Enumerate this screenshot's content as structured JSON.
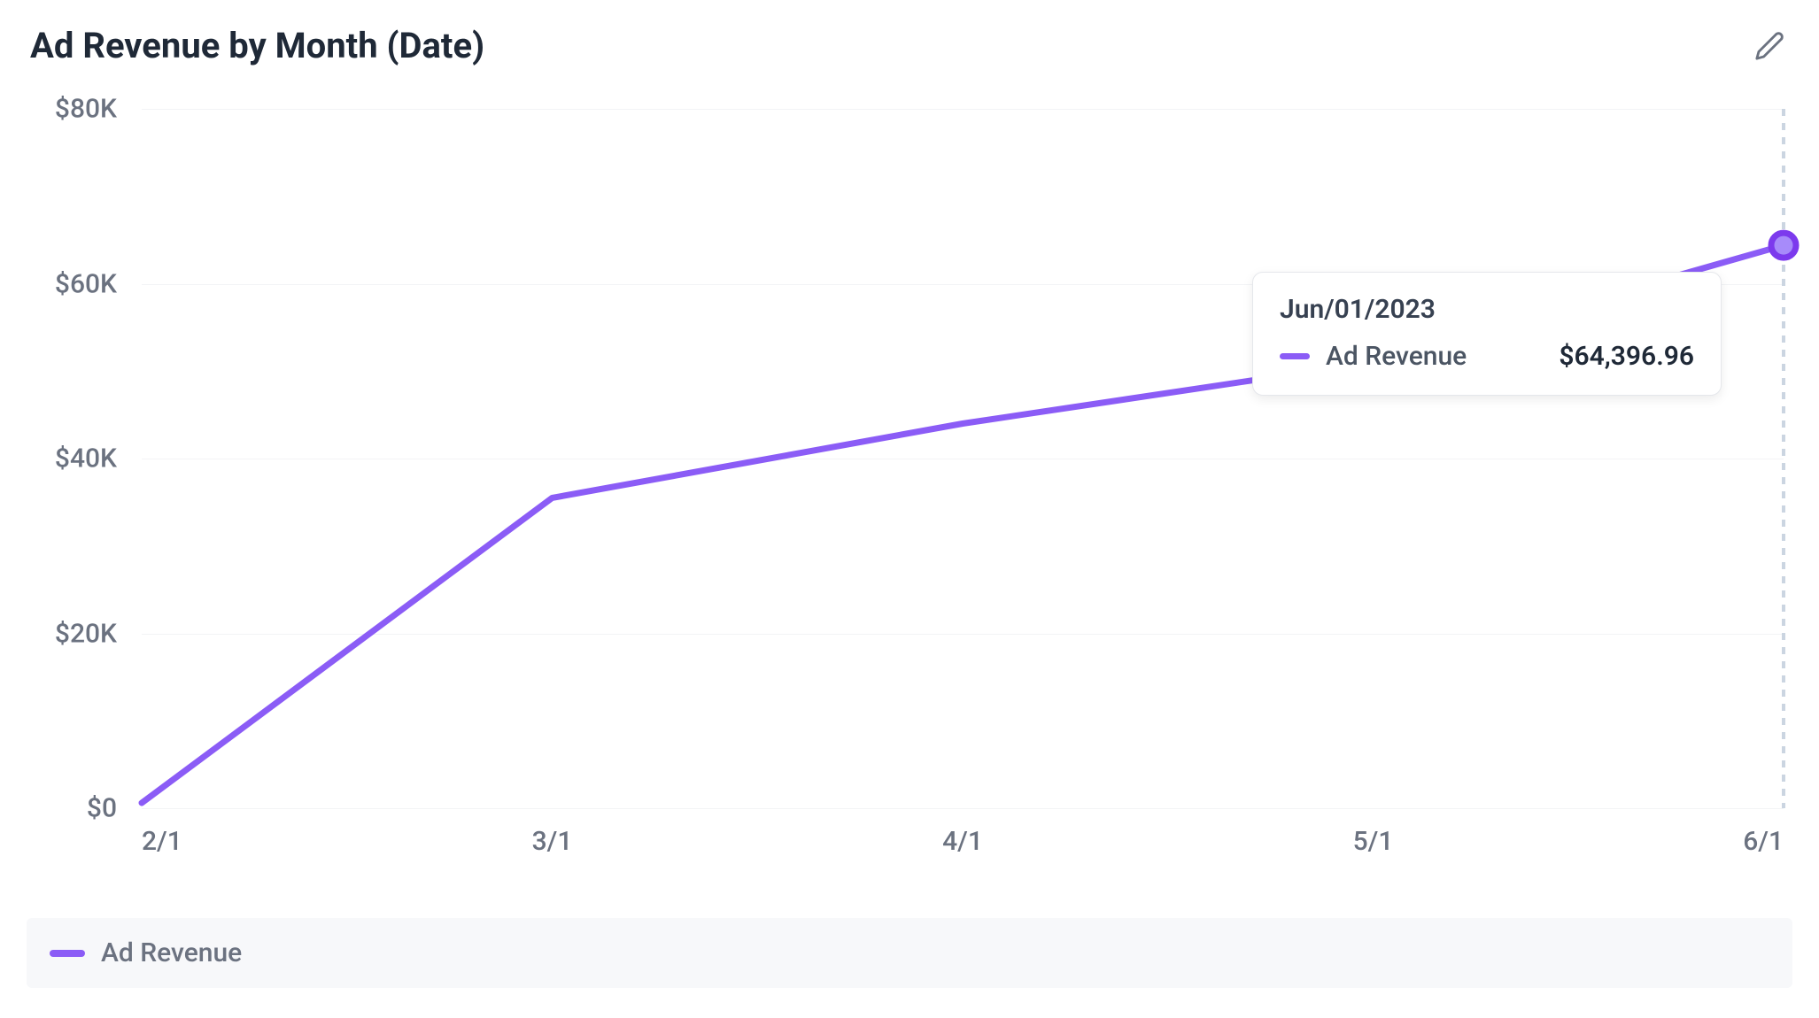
{
  "header": {
    "title": "Ad Revenue by Month (Date)"
  },
  "chart": {
    "type": "line",
    "series_name": "Ad Revenue",
    "line_color": "#8b5cf6",
    "line_width": 7,
    "marker_stroke": "#7c3aed",
    "marker_fill": "#a78bfa",
    "marker_radius": 14,
    "marker_stroke_width": 7,
    "grid_color": "#f3f4f6",
    "cursor_color": "#cbd5e1",
    "background_color": "#ffffff",
    "x_labels": [
      "2/1",
      "3/1",
      "4/1",
      "5/1",
      "6/1"
    ],
    "y_labels": [
      "$0",
      "$20K",
      "$40K",
      "$60K",
      "$80K"
    ],
    "y_min": 0,
    "y_max": 80000,
    "y_tick_step": 20000,
    "values": [
      600,
      35500,
      44000,
      51000,
      64396.96
    ],
    "highlight_index": 4
  },
  "tooltip": {
    "date": "Jun/01/2023",
    "label": "Ad Revenue",
    "value": "$64,396.96",
    "swatch_color": "#8b5cf6"
  },
  "legend": {
    "label": "Ad Revenue",
    "swatch_color": "#8b5cf6",
    "background_color": "#f7f8fa"
  },
  "axis_style": {
    "tick_color": "#6b7280",
    "tick_fontsize": 30
  }
}
